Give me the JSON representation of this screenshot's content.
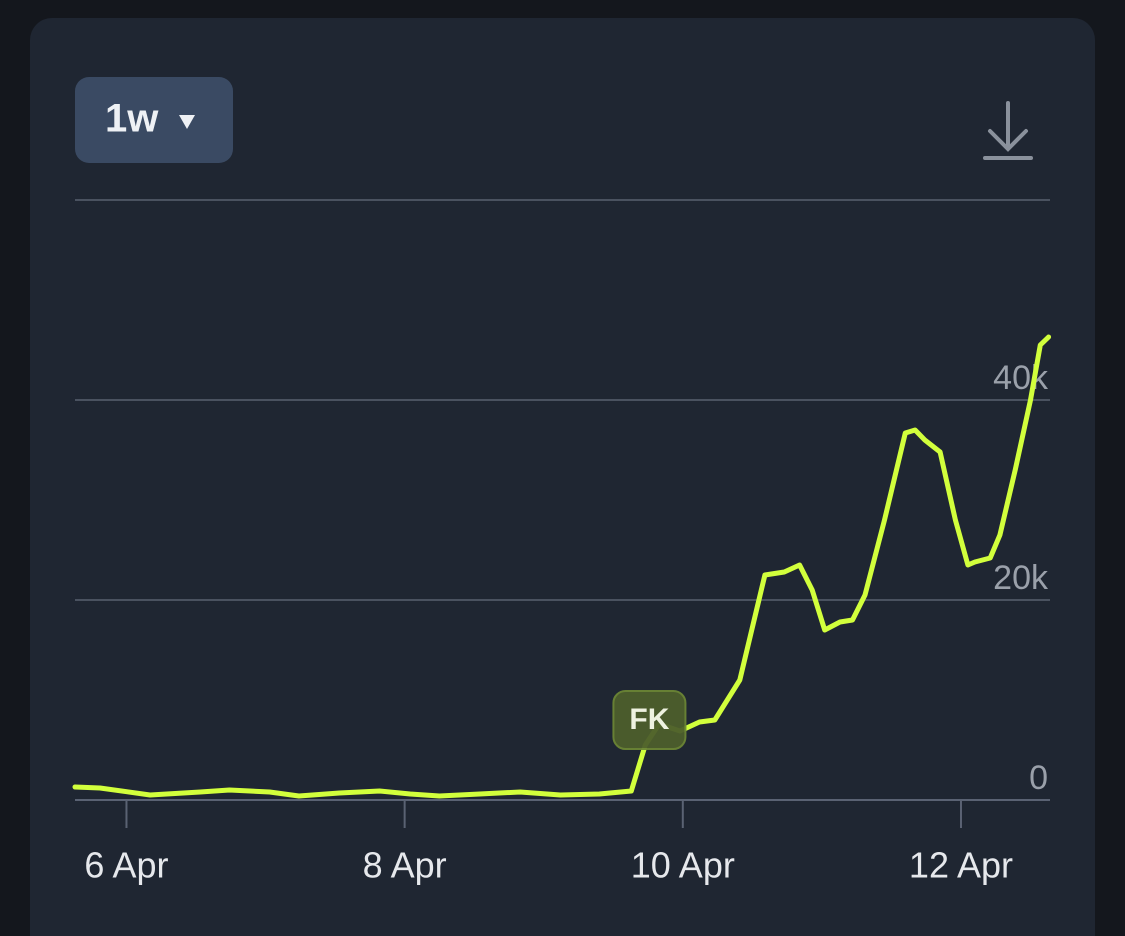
{
  "controls": {
    "range": "1w"
  },
  "chart_data": {
    "type": "line",
    "x": [
      5.63,
      5.81,
      6.17,
      6.53,
      6.74,
      7.03,
      7.24,
      7.53,
      7.82,
      8.04,
      8.25,
      8.54,
      8.83,
      9.12,
      9.4,
      9.63,
      9.73,
      9.83,
      9.98,
      10.12,
      10.23,
      10.41,
      10.59,
      10.73,
      10.84,
      10.93,
      11.02,
      11.13,
      11.22,
      11.31,
      11.45,
      11.6,
      11.67,
      11.74,
      11.85,
      11.96,
      12.05,
      12.1,
      12.21,
      12.28,
      12.39,
      12.5,
      12.57,
      12.63
    ],
    "values": [
      1300,
      1200,
      500,
      800,
      1000,
      800,
      400,
      700,
      900,
      600,
      400,
      600,
      800,
      500,
      600,
      900,
      5500,
      7600,
      6900,
      7800,
      8000,
      12000,
      22500,
      22800,
      23500,
      21000,
      17000,
      17800,
      18000,
      20500,
      28000,
      36700,
      37000,
      36000,
      34800,
      28000,
      23500,
      23800,
      24200,
      26500,
      33000,
      40000,
      45500,
      46300
    ],
    "color": "#d2ff3c",
    "xlim": [
      5.63,
      12.64
    ],
    "xticks": [
      {
        "value": 6,
        "label": "6 Apr"
      },
      {
        "value": 8,
        "label": "8 Apr"
      },
      {
        "value": 10,
        "label": "10 Apr"
      },
      {
        "value": 12,
        "label": "12 Apr"
      }
    ],
    "ylim": [
      0,
      60000
    ],
    "yticks": [
      0,
      {
        "value": 20000,
        "label": "20k"
      },
      {
        "value": 40000,
        "label": "40k"
      }
    ],
    "grid": true,
    "annotations": [
      {
        "text": "FK",
        "x": 9.76,
        "y": 8000
      }
    ]
  }
}
